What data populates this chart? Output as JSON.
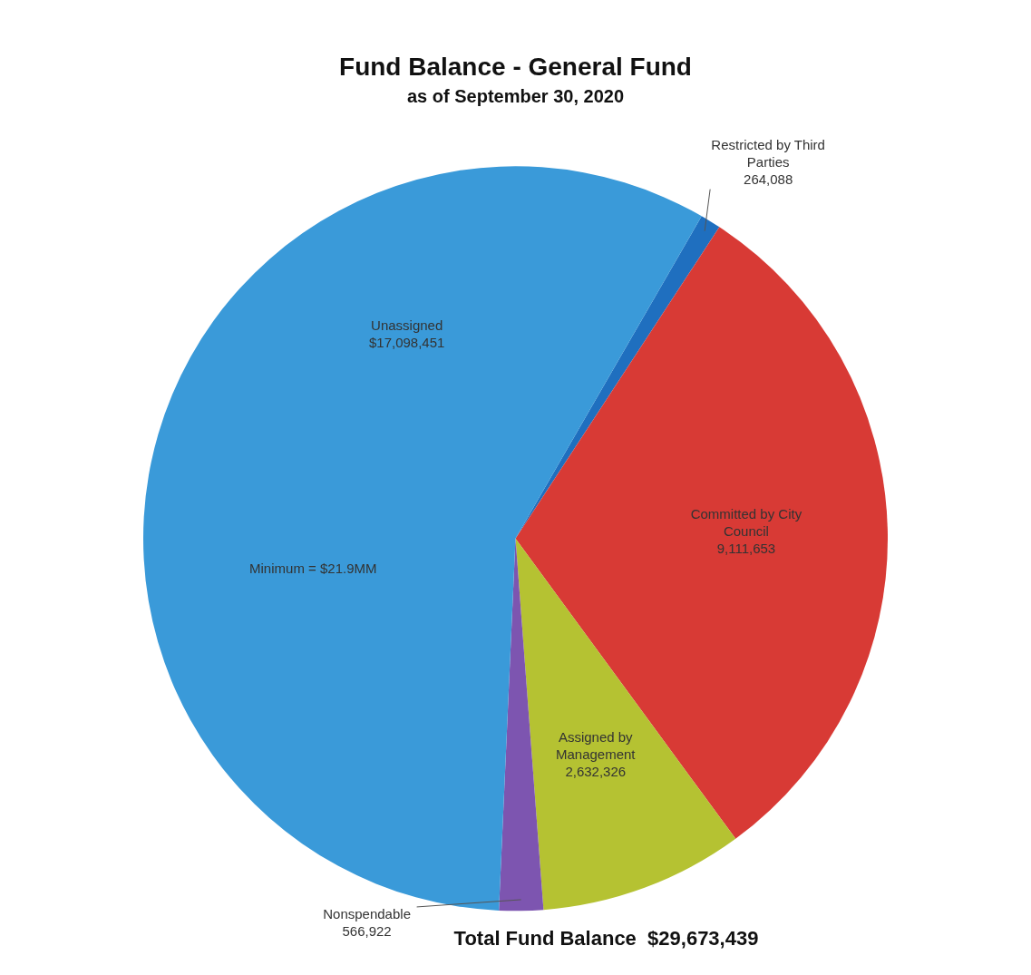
{
  "chart_data": {
    "type": "pie",
    "title": "Fund Balance - General Fund",
    "subtitle": "as of September 30, 2020",
    "categories": [
      "Restricted by Third Parties",
      "Committed by City Council",
      "Assigned by Management",
      "Nonspendable",
      "Unassigned"
    ],
    "values": [
      264088,
      9111653,
      2632326,
      566922,
      17098451
    ],
    "colors": [
      "#1f6fbf",
      "#d83a35",
      "#b5c232",
      "#7d55b0",
      "#3a9ad9"
    ],
    "value_labels": [
      "264,088",
      "9,111,653",
      "2,632,326",
      "566,922",
      "$17,098,451"
    ],
    "annotations": [
      {
        "text": "Minimum = $21.9MM",
        "x": "Unassigned"
      },
      "Total Fund Balance  $29,673,439"
    ],
    "legend": false
  }
}
